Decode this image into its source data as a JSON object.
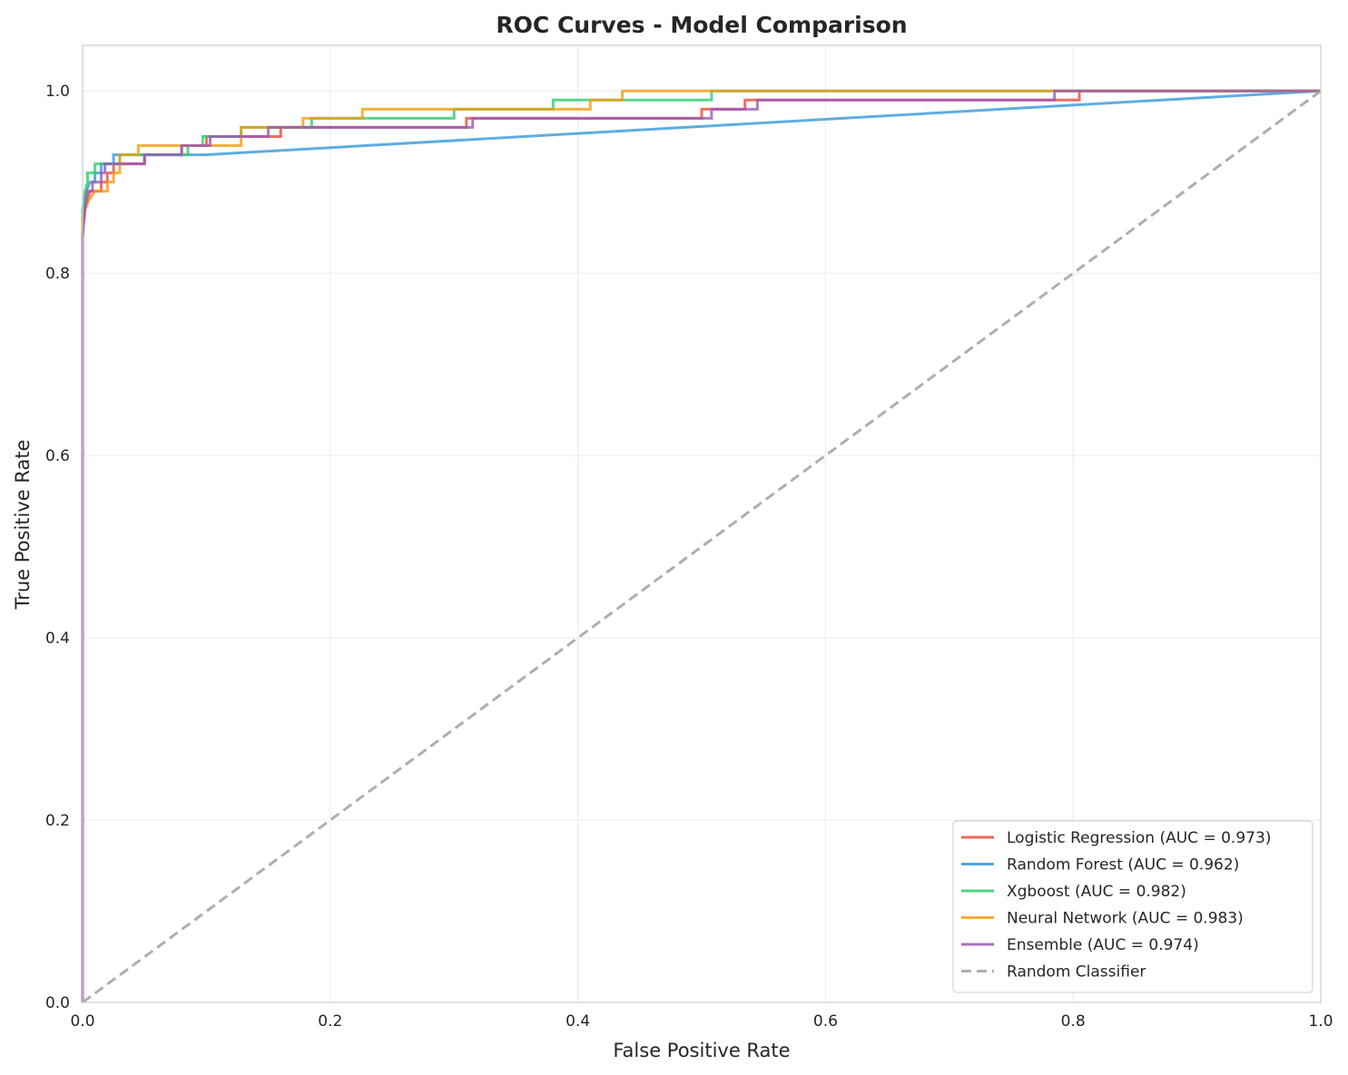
{
  "chart_data": {
    "type": "line",
    "title": "ROC Curves - Model Comparison",
    "xlabel": "False Positive Rate",
    "ylabel": "True Positive Rate",
    "xlim": [
      0,
      1
    ],
    "ylim": [
      0,
      1.05
    ],
    "xticks": [
      "0.0",
      "0.2",
      "0.4",
      "0.6",
      "0.8",
      "1.0"
    ],
    "yticks": [
      "0.0",
      "0.2",
      "0.4",
      "0.6",
      "0.8",
      "1.0"
    ],
    "grid": true,
    "legend_position": "lower-right",
    "series": [
      {
        "name": "Logistic Regression (AUC = 0.973)",
        "color": "#e74c3c",
        "points": [
          [
            0,
            0
          ],
          [
            0,
            0.85
          ],
          [
            0.002,
            0.87
          ],
          [
            0.004,
            0.88
          ],
          [
            0.006,
            0.89
          ],
          [
            0.015,
            0.89
          ],
          [
            0.015,
            0.9
          ],
          [
            0.02,
            0.9
          ],
          [
            0.02,
            0.91
          ],
          [
            0.025,
            0.91
          ],
          [
            0.025,
            0.92
          ],
          [
            0.05,
            0.92
          ],
          [
            0.05,
            0.93
          ],
          [
            0.08,
            0.93
          ],
          [
            0.08,
            0.94
          ],
          [
            0.1,
            0.94
          ],
          [
            0.1,
            0.95
          ],
          [
            0.16,
            0.95
          ],
          [
            0.16,
            0.96
          ],
          [
            0.31,
            0.96
          ],
          [
            0.31,
            0.97
          ],
          [
            0.5,
            0.97
          ],
          [
            0.5,
            0.98
          ],
          [
            0.535,
            0.98
          ],
          [
            0.535,
            0.99
          ],
          [
            0.805,
            0.99
          ],
          [
            0.805,
            1.0
          ],
          [
            1.0,
            1.0
          ]
        ]
      },
      {
        "name": "Random Forest (AUC = 0.962)",
        "color": "#3498db",
        "points": [
          [
            0,
            0
          ],
          [
            0,
            0.86
          ],
          [
            0.003,
            0.89
          ],
          [
            0.006,
            0.9
          ],
          [
            0.01,
            0.9
          ],
          [
            0.01,
            0.91
          ],
          [
            0.015,
            0.91
          ],
          [
            0.015,
            0.92
          ],
          [
            0.025,
            0.92
          ],
          [
            0.025,
            0.93
          ],
          [
            0.05,
            0.93
          ],
          [
            0.05,
            0.93
          ],
          [
            0.1,
            0.93
          ],
          [
            1.0,
            1.0
          ]
        ]
      },
      {
        "name": "Xgboost (AUC = 0.982)",
        "color": "#2ecc71",
        "points": [
          [
            0,
            0
          ],
          [
            0,
            0.87
          ],
          [
            0.002,
            0.89
          ],
          [
            0.004,
            0.9
          ],
          [
            0.004,
            0.91
          ],
          [
            0.01,
            0.91
          ],
          [
            0.01,
            0.92
          ],
          [
            0.03,
            0.92
          ],
          [
            0.03,
            0.93
          ],
          [
            0.085,
            0.93
          ],
          [
            0.085,
            0.94
          ],
          [
            0.097,
            0.94
          ],
          [
            0.097,
            0.95
          ],
          [
            0.128,
            0.95
          ],
          [
            0.128,
            0.96
          ],
          [
            0.185,
            0.96
          ],
          [
            0.185,
            0.97
          ],
          [
            0.3,
            0.97
          ],
          [
            0.3,
            0.98
          ],
          [
            0.38,
            0.98
          ],
          [
            0.38,
            0.99
          ],
          [
            0.508,
            0.99
          ],
          [
            0.508,
            1.0
          ],
          [
            1.0,
            1.0
          ]
        ]
      },
      {
        "name": "Neural Network (AUC = 0.983)",
        "color": "#f39c12",
        "points": [
          [
            0,
            0
          ],
          [
            0,
            0.86
          ],
          [
            0.002,
            0.87
          ],
          [
            0.005,
            0.88
          ],
          [
            0.01,
            0.89
          ],
          [
            0.02,
            0.89
          ],
          [
            0.02,
            0.9
          ],
          [
            0.025,
            0.9
          ],
          [
            0.025,
            0.91
          ],
          [
            0.03,
            0.91
          ],
          [
            0.03,
            0.93
          ],
          [
            0.045,
            0.93
          ],
          [
            0.045,
            0.94
          ],
          [
            0.128,
            0.94
          ],
          [
            0.128,
            0.96
          ],
          [
            0.178,
            0.96
          ],
          [
            0.178,
            0.97
          ],
          [
            0.226,
            0.97
          ],
          [
            0.226,
            0.98
          ],
          [
            0.41,
            0.98
          ],
          [
            0.41,
            0.99
          ],
          [
            0.436,
            0.99
          ],
          [
            0.436,
            1.0
          ],
          [
            1.0,
            1.0
          ]
        ]
      },
      {
        "name": "Ensemble (AUC = 0.974)",
        "color": "#9b59b6",
        "points": [
          [
            0,
            0
          ],
          [
            0,
            0.84
          ],
          [
            0.002,
            0.87
          ],
          [
            0.004,
            0.89
          ],
          [
            0.008,
            0.89
          ],
          [
            0.008,
            0.9
          ],
          [
            0.015,
            0.9
          ],
          [
            0.015,
            0.91
          ],
          [
            0.018,
            0.91
          ],
          [
            0.018,
            0.92
          ],
          [
            0.05,
            0.92
          ],
          [
            0.05,
            0.93
          ],
          [
            0.08,
            0.93
          ],
          [
            0.08,
            0.94
          ],
          [
            0.103,
            0.94
          ],
          [
            0.103,
            0.95
          ],
          [
            0.15,
            0.95
          ],
          [
            0.15,
            0.96
          ],
          [
            0.315,
            0.96
          ],
          [
            0.315,
            0.97
          ],
          [
            0.508,
            0.97
          ],
          [
            0.508,
            0.98
          ],
          [
            0.545,
            0.98
          ],
          [
            0.545,
            0.99
          ],
          [
            0.785,
            0.99
          ],
          [
            0.785,
            1.0
          ],
          [
            1.0,
            1.0
          ]
        ]
      },
      {
        "name": "Random Classifier",
        "color": "#a0a0a0",
        "dashed": true,
        "points": [
          [
            0,
            0
          ],
          [
            1,
            1
          ]
        ]
      }
    ]
  }
}
